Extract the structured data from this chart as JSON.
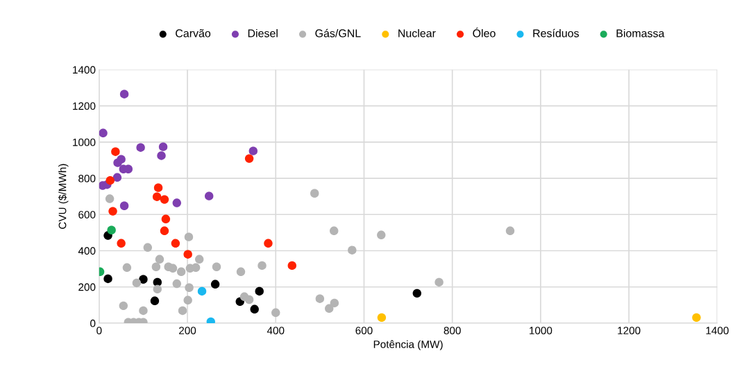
{
  "chart_data": {
    "type": "scatter",
    "xlabel": "Potência (MW)",
    "ylabel": "CVU ($/MWh)",
    "xlim": [
      0,
      1400
    ],
    "xticks": [
      0,
      200,
      400,
      600,
      800,
      1000,
      1200,
      1400
    ],
    "ylim": [
      0,
      1400
    ],
    "yticks": [
      0,
      200,
      400,
      600,
      800,
      1000,
      1200,
      1400
    ],
    "grid": true,
    "legend": "top",
    "marker": "circle",
    "series": [
      {
        "name": "Carvão",
        "color": "#000000",
        "x": [
          20,
          20,
          100,
          132,
          126,
          263,
          363,
          319,
          352,
          720
        ],
        "values": [
          484,
          245,
          242,
          226,
          123,
          215,
          176,
          119,
          77,
          165
        ]
      },
      {
        "name": "Diesel",
        "color": "#7f3fb0",
        "x": [
          57,
          9,
          94,
          145,
          141,
          50,
          42,
          55,
          66,
          41,
          8,
          18,
          249,
          176,
          57,
          349
        ],
        "values": [
          1265,
          1050,
          970,
          974,
          925,
          905,
          886,
          851,
          851,
          805,
          760,
          765,
          702,
          664,
          648,
          951
        ]
      },
      {
        "name": "Gás/GNL",
        "color": "#b4b4b4",
        "x": [
          24,
          110,
          203,
          137,
          63,
          129,
          157,
          167,
          186,
          206,
          219,
          227,
          266,
          85,
          132,
          176,
          204,
          201,
          55,
          100,
          189,
          66,
          78,
          90,
          100,
          321,
          369,
          488,
          532,
          573,
          329,
          340,
          400,
          500,
          533,
          521,
          639,
          770,
          931
        ],
        "values": [
          687,
          418,
          476,
          353,
          307,
          311,
          311,
          303,
          284,
          303,
          307,
          353,
          311,
          222,
          188,
          218,
          196,
          127,
          96,
          69,
          69,
          5,
          5,
          5,
          5,
          284,
          318,
          717,
          510,
          403,
          146,
          130,
          58,
          135,
          111,
          81,
          487,
          226,
          510
        ]
      },
      {
        "name": "Nuclear",
        "color": "#ffc000",
        "x": [
          640,
          1353
        ],
        "values": [
          31,
          31
        ]
      },
      {
        "name": "Óleo",
        "color": "#ff2200",
        "x": [
          25,
          37,
          134,
          131,
          148,
          31,
          151,
          148,
          50,
          173,
          201,
          340,
          383,
          437
        ],
        "values": [
          788,
          947,
          748,
          698,
          683,
          618,
          575,
          510,
          441,
          441,
          380,
          909,
          441,
          318
        ]
      },
      {
        "name": "Resíduos",
        "color": "#1ab8f0",
        "x": [
          233,
          253
        ],
        "values": [
          176,
          8
        ]
      },
      {
        "name": "Biomassa",
        "color": "#1aab5a",
        "x": [
          28,
          2
        ],
        "values": [
          514,
          284
        ]
      }
    ]
  }
}
